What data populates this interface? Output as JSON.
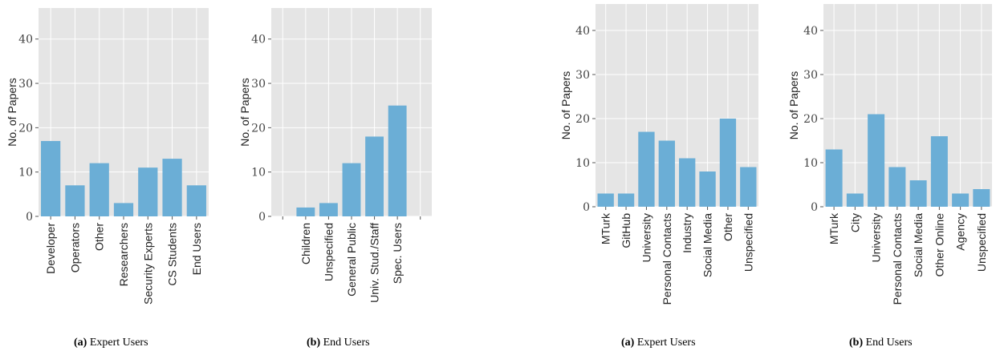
{
  "chart_data": [
    {
      "type": "bar",
      "panel_label": "(a)",
      "caption": "Expert Users",
      "ylabel": "No. of Papers",
      "ylim": [
        0,
        47
      ],
      "yticks": [
        0,
        10,
        20,
        30,
        40
      ],
      "grid": true,
      "categories": [
        "Developer",
        "Operators",
        "Other",
        "Researchers",
        "Security Experts",
        "CS Students",
        "End Users"
      ],
      "values": [
        17,
        7,
        12,
        3,
        11,
        13,
        7
      ],
      "color": "#6baed6"
    },
    {
      "type": "bar",
      "panel_label": "(b)",
      "caption": "End Users",
      "ylabel": "No. of Papers",
      "ylim": [
        0,
        47
      ],
      "yticks": [
        0,
        10,
        20,
        30,
        40
      ],
      "grid": true,
      "categories": [
        "",
        "Children",
        "Unspecified",
        "General Public",
        "Univ. Stud./Staff",
        "Spec. Users",
        ""
      ],
      "values": [
        0,
        2,
        3,
        12,
        18,
        25,
        0
      ],
      "color": "#6baed6"
    },
    {
      "type": "bar",
      "panel_label": "(a)",
      "caption": "Expert Users",
      "ylabel": "No. of Papers",
      "ylim": [
        0,
        46
      ],
      "yticks": [
        0,
        10,
        20,
        30,
        40
      ],
      "grid": true,
      "categories": [
        "MTurk",
        "GitHub",
        "University",
        "Personal Contacts",
        "Industry",
        "Social Media",
        "Other",
        "Unspecified"
      ],
      "values": [
        3,
        3,
        17,
        15,
        11,
        8,
        20,
        9
      ],
      "color": "#6baed6"
    },
    {
      "type": "bar",
      "panel_label": "(b)",
      "caption": "End Users",
      "ylabel": "No. of Papers",
      "ylim": [
        0,
        46
      ],
      "yticks": [
        0,
        10,
        20,
        30,
        40
      ],
      "grid": true,
      "categories": [
        "MTurk",
        "City",
        "University",
        "Personal Contacts",
        "Social Media",
        "Other Online",
        "Agency",
        "Unspecified"
      ],
      "values": [
        13,
        3,
        21,
        9,
        6,
        16,
        3,
        4
      ],
      "color": "#6baed6"
    }
  ]
}
